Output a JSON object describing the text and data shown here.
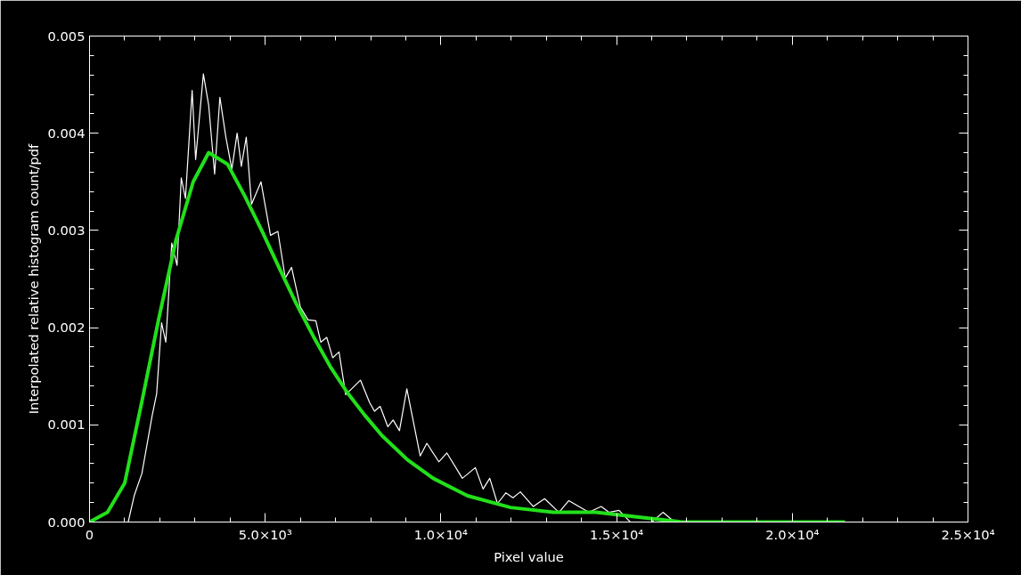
{
  "chart_data": {
    "type": "line",
    "xlabel": "Pixel value",
    "ylabel": "Interpolated relative histogram count/pdf",
    "xlim": [
      0,
      25000
    ],
    "ylim": [
      0,
      0.005
    ],
    "xticks": [
      0,
      {
        "value": 1000,
        "label": null
      },
      {
        "value": 2000,
        "label": null
      },
      {
        "value": 3000,
        "label": null
      },
      {
        "value": 4000,
        "label": null
      },
      {
        "value": 5000,
        "label": "5.0×10³"
      },
      {
        "value": 6000,
        "label": null
      },
      {
        "value": 7000,
        "label": null
      },
      {
        "value": 8000,
        "label": null
      },
      {
        "value": 9000,
        "label": null
      },
      {
        "value": 10000,
        "label": "1.0×10⁴"
      },
      {
        "value": 11000,
        "label": null
      },
      {
        "value": 12000,
        "label": null
      },
      {
        "value": 13000,
        "label": null
      },
      {
        "value": 14000,
        "label": null
      },
      {
        "value": 15000,
        "label": "1.5×10⁴"
      },
      {
        "value": 16000,
        "label": null
      },
      {
        "value": 17000,
        "label": null
      },
      {
        "value": 18000,
        "label": null
      },
      {
        "value": 19000,
        "label": null
      },
      {
        "value": 20000,
        "label": "2.0×10⁴"
      },
      {
        "value": 21000,
        "label": null
      },
      {
        "value": 22000,
        "label": null
      },
      {
        "value": 23000,
        "label": null
      },
      {
        "value": 24000,
        "label": null
      },
      {
        "value": 25000,
        "label": "2.5×10⁴"
      }
    ],
    "yticks": [
      {
        "value": 0,
        "label": "0.000"
      },
      {
        "value": 0.0002,
        "label": null
      },
      {
        "value": 0.0004,
        "label": null
      },
      {
        "value": 0.0006,
        "label": null
      },
      {
        "value": 0.0008,
        "label": null
      },
      {
        "value": 0.001,
        "label": "0.001"
      },
      {
        "value": 0.0012,
        "label": null
      },
      {
        "value": 0.0014,
        "label": null
      },
      {
        "value": 0.0016,
        "label": null
      },
      {
        "value": 0.0018,
        "label": null
      },
      {
        "value": 0.002,
        "label": "0.002"
      },
      {
        "value": 0.0022,
        "label": null
      },
      {
        "value": 0.0024,
        "label": null
      },
      {
        "value": 0.0026,
        "label": null
      },
      {
        "value": 0.0028,
        "label": null
      },
      {
        "value": 0.003,
        "label": "0.003"
      },
      {
        "value": 0.0032,
        "label": null
      },
      {
        "value": 0.0034,
        "label": null
      },
      {
        "value": 0.0036,
        "label": null
      },
      {
        "value": 0.0038,
        "label": null
      },
      {
        "value": 0.004,
        "label": "0.004"
      },
      {
        "value": 0.0042,
        "label": null
      },
      {
        "value": 0.0044,
        "label": null
      },
      {
        "value": 0.0046,
        "label": null
      },
      {
        "value": 0.0048,
        "label": null
      },
      {
        "value": 0.005,
        "label": "0.005"
      }
    ],
    "grid": false,
    "marker": "none",
    "line_style": "solid",
    "series": [
      {
        "color": "#ffffff",
        "x": [
          830,
          1100,
          1270,
          1490,
          1780,
          1910,
          2050,
          2170,
          2340,
          2490,
          2610,
          2730,
          2920,
          3020,
          3240,
          3390,
          3560,
          3710,
          3880,
          4050,
          4200,
          4320,
          4460,
          4610,
          4880,
          5150,
          5360,
          5570,
          5750,
          6000,
          6220,
          6440,
          6580,
          6750,
          6920,
          7100,
          7290,
          7710,
          7970,
          8110,
          8270,
          8490,
          8640,
          8820,
          9030,
          9410,
          9600,
          9940,
          10170,
          10610,
          10980,
          11200,
          11390,
          11610,
          11850,
          12050,
          12260,
          12630,
          12950,
          13360,
          13640,
          14210,
          14560,
          14780,
          15070,
          15390,
          15760,
          16000,
          16320,
          16650,
          17830,
          18020,
          18200
        ],
        "values": [
          0,
          0,
          0.00027,
          0.0005,
          0.00109,
          0.00132,
          0.00205,
          0.00185,
          0.00287,
          0.00264,
          0.00354,
          0.00333,
          0.00444,
          0.00373,
          0.00461,
          0.00429,
          0.00358,
          0.00437,
          0.00396,
          0.00363,
          0.004,
          0.00366,
          0.00396,
          0.00327,
          0.0035,
          0.00295,
          0.00299,
          0.00251,
          0.00262,
          0.00221,
          0.00208,
          0.00207,
          0.00185,
          0.0019,
          0.00169,
          0.00175,
          0.00131,
          0.00146,
          0.00123,
          0.00114,
          0.00119,
          0.00098,
          0.00105,
          0.00094,
          0.00137,
          0.00068,
          0.00081,
          0.00062,
          0.00071,
          0.00045,
          0.00056,
          0.00034,
          0.00045,
          0.00019,
          0.0003,
          0.00025,
          0.00031,
          0.00016,
          0.00024,
          0.0001,
          0.00022,
          0.0001,
          0.00016,
          0.0001,
          0.00012,
          0,
          0,
          0,
          0.0001,
          0,
          0,
          0,
          0
        ]
      },
      {
        "color": "#22e01a",
        "x": [
          0,
          512,
          1000,
          1490,
          1975,
          2460,
          2950,
          3390,
          3930,
          4410,
          4900,
          5390,
          5880,
          6370,
          6850,
          7340,
          7830,
          8320,
          9050,
          9780,
          10760,
          11980,
          13200,
          14410,
          16850,
          19300,
          21500
        ],
        "values": [
          0,
          0.0001,
          0.0004,
          0.00124,
          0.0021,
          0.0029,
          0.0035,
          0.0038,
          0.00368,
          0.00336,
          0.003,
          0.00262,
          0.00225,
          0.00191,
          0.0016,
          0.00133,
          0.0011,
          0.00089,
          0.00064,
          0.00045,
          0.00027,
          0.00015,
          0.0001,
          0.0001,
          0,
          0,
          0
        ]
      }
    ]
  }
}
